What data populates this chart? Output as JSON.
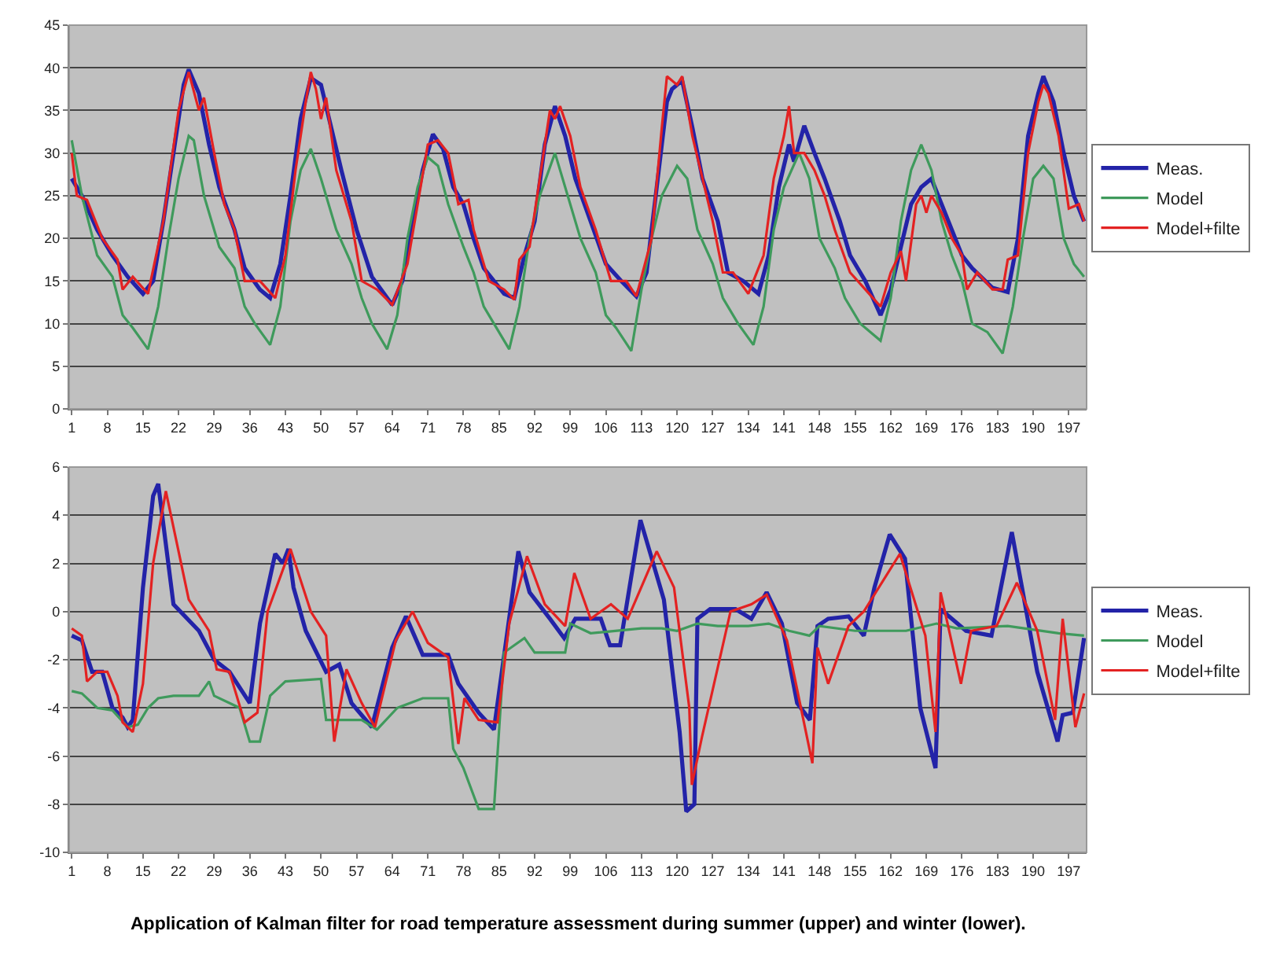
{
  "chart_data": [
    {
      "type": "line",
      "xlim": [
        0.5,
        200.5
      ],
      "xticks": [
        1,
        8,
        15,
        22,
        29,
        36,
        43,
        50,
        57,
        64,
        71,
        78,
        85,
        92,
        99,
        106,
        113,
        120,
        127,
        134,
        141,
        148,
        155,
        162,
        169,
        176,
        183,
        190,
        197
      ],
      "ylim": [
        0,
        45
      ],
      "yticks": [
        0,
        5,
        10,
        15,
        20,
        25,
        30,
        35,
        40,
        45
      ],
      "grid": "y",
      "legend": "right",
      "series": [
        {
          "name": "Meas.",
          "color": "#2323a8",
          "x": [
            1,
            3,
            6,
            9,
            12,
            15,
            17,
            19,
            21,
            23,
            24,
            26,
            28,
            30,
            33,
            35,
            38,
            40,
            42,
            44,
            46,
            48,
            50,
            52,
            54,
            57,
            60,
            64,
            66,
            68,
            70,
            72,
            74,
            76,
            78,
            80,
            82,
            86,
            88,
            90,
            92,
            94,
            96,
            98,
            100,
            103,
            106,
            109,
            112,
            114,
            116,
            118,
            119,
            121,
            123,
            125,
            128,
            130,
            133,
            136,
            138,
            140,
            142,
            143,
            145,
            147,
            149,
            152,
            154,
            157,
            160,
            162,
            164,
            166,
            168,
            170,
            172,
            174,
            176,
            178,
            182,
            185,
            187,
            189,
            191,
            192,
            194,
            196,
            198,
            200
          ],
          "values": [
            27,
            25,
            21,
            18,
            15.5,
            13.5,
            15,
            22,
            30,
            38,
            39.8,
            37,
            31,
            26,
            21,
            16.5,
            14,
            13,
            17,
            25,
            34,
            38.8,
            38,
            33,
            28,
            21,
            15.5,
            12.2,
            15,
            22,
            28,
            32.2,
            30.5,
            26,
            24,
            20,
            16.5,
            13.5,
            13,
            18,
            22,
            31,
            35.5,
            32,
            27,
            22,
            17,
            15,
            13.2,
            16,
            26,
            36,
            37.5,
            38.5,
            33,
            27,
            22,
            16,
            15,
            13.5,
            18,
            26,
            31,
            29,
            33.2,
            30,
            27,
            22,
            18,
            15,
            11,
            14,
            19,
            24,
            26,
            27,
            24,
            21,
            18,
            16.5,
            14.2,
            13.7,
            20,
            32,
            37,
            39,
            36,
            30,
            25,
            22
          ]
        },
        {
          "name": "Model",
          "color": "#3f9a5c",
          "x": [
            1,
            3,
            6,
            9,
            11,
            13,
            16,
            18,
            20,
            22,
            24,
            25,
            27,
            30,
            33,
            35,
            37,
            40,
            42,
            44,
            46,
            48,
            50,
            53,
            56,
            58,
            60,
            63,
            65,
            67,
            69,
            71,
            73,
            75,
            78,
            80,
            82,
            84,
            87,
            89,
            91,
            93,
            96,
            98,
            101,
            104,
            106,
            108,
            111,
            113,
            115,
            117,
            120,
            122,
            124,
            127,
            129,
            132,
            135,
            137,
            139,
            141,
            144,
            146,
            148,
            151,
            153,
            156,
            160,
            162,
            164,
            166,
            168,
            170,
            172,
            174,
            176,
            178,
            181,
            184,
            186,
            188,
            190,
            192,
            194,
            196,
            198,
            200
          ],
          "values": [
            31.5,
            25,
            18,
            15.5,
            11,
            9.5,
            7,
            12,
            20,
            27,
            32,
            31.5,
            25,
            19,
            16.5,
            12,
            10,
            7.5,
            12,
            22,
            28,
            30.5,
            27,
            21,
            17,
            13,
            10,
            7,
            11,
            20,
            26,
            29.5,
            28.5,
            24,
            19,
            16,
            12,
            10,
            7,
            12,
            20,
            25,
            30,
            26,
            20,
            16,
            11,
            9.5,
            6.8,
            14,
            20,
            25,
            28.5,
            27,
            21,
            17,
            13,
            10,
            7.5,
            12,
            21,
            26,
            30,
            27,
            20,
            16.5,
            13,
            10,
            8,
            13,
            22,
            28,
            31,
            28,
            22,
            18,
            15,
            10,
            9,
            6.5,
            12,
            20,
            27,
            28.5,
            27,
            20,
            17,
            15.5
          ]
        },
        {
          "name": "Model+filte",
          "color": "#e32222",
          "x": [
            1,
            2,
            4,
            7,
            10,
            11,
            13,
            16,
            19,
            22,
            24,
            26,
            27,
            29,
            31,
            33,
            35,
            38,
            41,
            43,
            45,
            47,
            48,
            49,
            50,
            51,
            53,
            56,
            58,
            61,
            64,
            67,
            69,
            71,
            73,
            75,
            77,
            79,
            80,
            83,
            86,
            88,
            89,
            91,
            93,
            95,
            96,
            97,
            99,
            101,
            104,
            107,
            110,
            112,
            115,
            117,
            118,
            120,
            121,
            123,
            125,
            127,
            129,
            131,
            134,
            137,
            139,
            141,
            142,
            143,
            145,
            147,
            149,
            151,
            154,
            157,
            160,
            162,
            164,
            165,
            167,
            168,
            169,
            170,
            172,
            174,
            176,
            177,
            179,
            182,
            184,
            185,
            187,
            189,
            191,
            192,
            193,
            195,
            197,
            199,
            200
          ],
          "values": [
            30,
            25,
            24.5,
            20,
            17.5,
            14,
            15.5,
            13.5,
            22,
            35,
            39.5,
            35,
            36.5,
            30,
            24,
            21,
            15,
            15,
            13,
            18,
            28,
            36,
            39.5,
            37.5,
            34,
            36.5,
            28,
            22,
            15,
            14,
            12.2,
            17,
            24,
            31,
            31.5,
            30,
            24,
            24.5,
            21,
            15,
            14,
            12.8,
            17.5,
            19,
            27,
            35,
            34,
            35.5,
            32,
            26,
            21,
            15,
            15,
            13.2,
            20,
            33,
            39,
            38,
            39,
            32,
            27,
            22,
            16,
            16,
            13.5,
            18,
            27,
            32,
            35.5,
            30,
            30,
            28,
            25,
            21,
            16,
            14,
            12,
            16,
            18.5,
            15,
            24,
            25,
            23,
            25,
            23,
            20,
            18,
            14,
            16,
            14,
            14,
            17.5,
            18,
            30,
            36,
            38,
            37,
            32,
            23.5,
            24,
            22
          ]
        }
      ]
    },
    {
      "type": "line",
      "xlim": [
        0.5,
        200.5
      ],
      "xticks": [
        1,
        8,
        15,
        22,
        29,
        36,
        43,
        50,
        57,
        64,
        71,
        78,
        85,
        92,
        99,
        106,
        113,
        120,
        127,
        134,
        141,
        148,
        155,
        162,
        169,
        176,
        183,
        190,
        197
      ],
      "ylim": [
        -10,
        6
      ],
      "yticks": [
        -10,
        -8,
        -6,
        -4,
        -2,
        0,
        2,
        4,
        6
      ],
      "grid": "y",
      "legend": "right",
      "annotations": [
        "Application of Kalman filter for road temperature assessment during summer (upper) and winter (lower)."
      ],
      "series": [
        {
          "name": "Meas.",
          "color": "#2323a8",
          "x": [
            1,
            3,
            5,
            7,
            9,
            11,
            12,
            13,
            15,
            17,
            18,
            21,
            26,
            29,
            32,
            36,
            38,
            41,
            42.5,
            43.6,
            44.6,
            47,
            51,
            53.6,
            56,
            60,
            64,
            66.7,
            70,
            75,
            77,
            81,
            84,
            88.8,
            91,
            95,
            97.8,
            100,
            105,
            106.8,
            108.8,
            112.8,
            117.4,
            120.5,
            121.8,
            123.4,
            124,
            126.5,
            131.5,
            134.6,
            137.6,
            140.6,
            143.6,
            146.1,
            147.6,
            149.7,
            153.7,
            156.7,
            158.8,
            161.8,
            164.8,
            167.8,
            170.8,
            171.8,
            176.8,
            181.8,
            185.8,
            187.8,
            190.8,
            194.8,
            195.8,
            197.8,
            200
          ],
          "values": [
            -1,
            -1.2,
            -2.5,
            -2.5,
            -4,
            -4.4,
            -4.8,
            -4.5,
            1,
            4.8,
            5.3,
            0.3,
            -0.8,
            -2,
            -2.5,
            -3.8,
            -0.5,
            2.4,
            2,
            2.6,
            1,
            -0.8,
            -2.5,
            -2.2,
            -3.8,
            -4.8,
            -1.5,
            -0.2,
            -1.8,
            -1.8,
            -3,
            -4.2,
            -4.9,
            2.5,
            0.8,
            -0.3,
            -1.1,
            -0.3,
            -0.3,
            -1.4,
            -1.4,
            3.8,
            0.5,
            -5,
            -8.3,
            -8,
            -0.3,
            0.1,
            0.1,
            -0.3,
            0.8,
            -0.5,
            -3.8,
            -4.5,
            -0.6,
            -0.3,
            -0.2,
            -1,
            1,
            3.2,
            2.2,
            -4,
            -6.5,
            0.1,
            -0.8,
            -1,
            3.3,
            1,
            -2.5,
            -5.4,
            -4.3,
            -4.2,
            -1.1
          ]
        },
        {
          "name": "Model",
          "color": "#3f9a5c",
          "x": [
            1,
            3,
            6,
            9,
            12,
            14,
            16,
            18,
            21,
            26,
            28,
            29,
            34,
            36,
            38,
            40,
            43,
            50,
            51,
            58,
            61,
            65,
            70,
            75,
            76,
            78,
            81,
            84,
            86,
            90,
            92,
            98,
            99,
            103,
            113,
            117,
            120,
            124,
            128,
            134,
            138,
            142,
            146,
            148,
            155,
            165,
            171,
            175,
            185,
            195,
            200
          ],
          "values": [
            -3.3,
            -3.4,
            -4,
            -4.1,
            -4.8,
            -4.7,
            -4,
            -3.6,
            -3.5,
            -3.5,
            -2.9,
            -3.5,
            -4,
            -5.4,
            -5.4,
            -3.5,
            -2.9,
            -2.8,
            -4.5,
            -4.5,
            -4.9,
            -4,
            -3.6,
            -3.6,
            -5.7,
            -6.5,
            -8.2,
            -8.2,
            -1.7,
            -1.1,
            -1.7,
            -1.7,
            -0.5,
            -0.9,
            -0.7,
            -0.7,
            -0.8,
            -0.5,
            -0.6,
            -0.6,
            -0.5,
            -0.8,
            -1,
            -0.6,
            -0.8,
            -0.8,
            -0.5,
            -0.7,
            -0.6,
            -0.9,
            -1
          ]
        },
        {
          "name": "Model+filte",
          "color": "#e32222",
          "x": [
            1,
            3,
            4,
            6,
            8,
            10,
            11,
            13,
            15,
            17,
            19.5,
            24,
            28,
            29.5,
            32,
            35,
            37.5,
            39.5,
            44,
            48,
            51,
            52.6,
            55,
            58,
            60.6,
            64.7,
            68,
            71,
            75,
            77,
            78.2,
            81,
            84.7,
            87,
            90.5,
            94,
            98,
            99.8,
            103,
            107,
            110.3,
            116,
            119.4,
            122.4,
            122.9,
            124.9,
            130.5,
            134.6,
            137.6,
            141.6,
            146.6,
            147.6,
            149.7,
            153.7,
            156.7,
            163.8,
            168.8,
            170.8,
            171.8,
            175.8,
            177.8,
            182.8,
            186.8,
            190.8,
            194.3,
            195.8,
            198.3,
            200
          ],
          "values": [
            -0.7,
            -1,
            -2.9,
            -2.5,
            -2.5,
            -3.5,
            -4.6,
            -5,
            -3,
            2,
            5,
            0.5,
            -0.8,
            -2.4,
            -2.5,
            -4.6,
            -4.2,
            0,
            2.6,
            0,
            -1,
            -5.4,
            -2.4,
            -3.8,
            -4.8,
            -1.2,
            0,
            -1.3,
            -1.9,
            -5.5,
            -3.6,
            -4.5,
            -4.6,
            -0.5,
            2.3,
            0.3,
            -0.6,
            1.6,
            -0.3,
            0.3,
            -0.3,
            2.5,
            1,
            -4,
            -7.2,
            -5.2,
            0,
            0.3,
            0.7,
            -1.2,
            -6.3,
            -1.5,
            -3,
            -0.6,
            0,
            2.4,
            -1,
            -5,
            0.8,
            -3,
            -0.8,
            -0.6,
            1.2,
            -0.8,
            -4.5,
            -0.3,
            -4.8,
            -3.4
          ]
        }
      ]
    }
  ]
}
